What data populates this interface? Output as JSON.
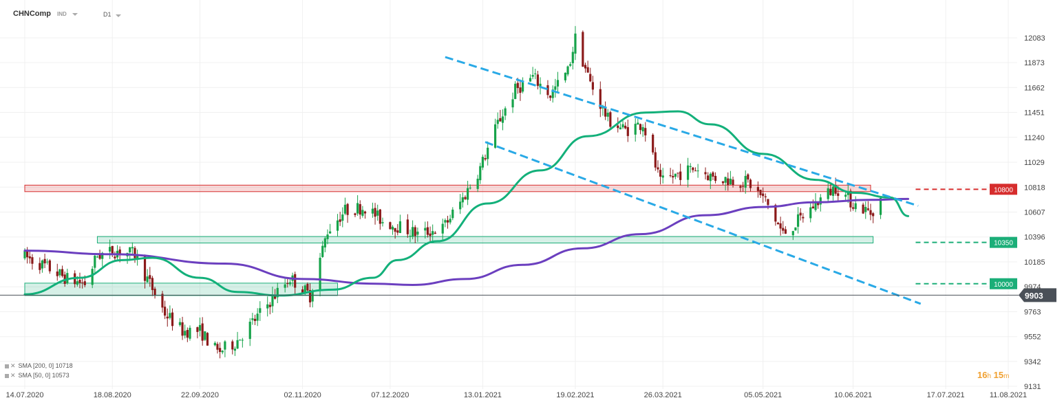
{
  "header": {
    "symbol": "CHNComp",
    "instrument_type": "IND",
    "timeframe": "D1"
  },
  "legend": {
    "sma200": "SMA [200, 0] 10718",
    "sma50": "SMA [50, 0] 10573"
  },
  "timer": {
    "hours": "16",
    "h": "h",
    "minutes": "15",
    "m": "m"
  },
  "colors": {
    "bull": "#16a34a",
    "bear": "#8b1a1a",
    "sma50": "#13b07a",
    "sma200": "#6b3fbf",
    "channel": "#29a9e6",
    "resistance": "#d62d2d",
    "support": "#1bae78",
    "current": "#4a5058"
  },
  "chart_data": {
    "type": "candlestick",
    "ylim": [
      9131,
      12083
    ],
    "y_ticks": [
      "12083",
      "11873",
      "11662",
      "11451",
      "11240",
      "11029",
      "10818",
      "10607",
      "10396",
      "10185",
      "9974",
      "9763",
      "9552",
      "9342",
      "9131"
    ],
    "x_ticks": [
      "14.07.2020",
      "18.08.2020",
      "22.09.2020",
      "02.11.2020",
      "07.12.2020",
      "13.01.2021",
      "19.02.2021",
      "26.03.2021",
      "05.05.2021",
      "10.06.2021",
      "17.07.2021",
      "11.08.2021"
    ],
    "levels": [
      {
        "name": "resistance",
        "value": 10800,
        "label": "10800",
        "style": "dashed",
        "color": "#d62d2d"
      },
      {
        "name": "support-high",
        "value": 10350,
        "label": "10350",
        "style": "dashed",
        "color": "#1bae78"
      },
      {
        "name": "support-low",
        "value": 10000,
        "label": "10000",
        "style": "dashed",
        "color": "#1bae78"
      },
      {
        "name": "current-price",
        "value": 9903,
        "label": "9903",
        "style": "solid",
        "color": "#4a5058"
      }
    ],
    "zones": [
      {
        "name": "resistance-zone",
        "color": "#d62d2d",
        "from": "14.07.2020",
        "to": "17.06.2021",
        "low": 10780,
        "high": 10835
      },
      {
        "name": "support-zone-high",
        "color": "#1bae78",
        "from": "12.08.2020",
        "to": "18.06.2021",
        "low": 10345,
        "high": 10400
      },
      {
        "name": "support-zone-low",
        "color": "#1bae78",
        "from": "14.07.2020",
        "to": "16.11.2020",
        "low": 9900,
        "high": 10005
      }
    ],
    "channel": [
      {
        "name": "channel-upper",
        "from": {
          "date": "29.12.2020",
          "value": 11920
        },
        "to": {
          "date": "06.07.2021",
          "value": 10660
        }
      },
      {
        "name": "channel-lower",
        "from": {
          "date": "14.01.2021",
          "value": 11200
        },
        "to": {
          "date": "07.07.2021",
          "value": 9830
        }
      }
    ],
    "series": [
      {
        "name": "SMA [200, 0]",
        "color": "#6b3fbf",
        "points": [
          [
            "14.07.2020",
            10280
          ],
          [
            "18.08.2020",
            10250
          ],
          [
            "02.10.2020",
            10170
          ],
          [
            "02.11.2020",
            10040
          ],
          [
            "01.12.2020",
            10000
          ],
          [
            "16.12.2020",
            9990
          ],
          [
            "06.01.2021",
            10040
          ],
          [
            "29.01.2021",
            10160
          ],
          [
            "22.02.2021",
            10300
          ],
          [
            "17.03.2021",
            10420
          ],
          [
            "12.04.2021",
            10580
          ],
          [
            "05.05.2021",
            10650
          ],
          [
            "26.05.2021",
            10690
          ],
          [
            "17.06.2021",
            10710
          ],
          [
            "02.07.2021",
            10718
          ]
        ]
      },
      {
        "name": "SMA [50, 0]",
        "color": "#13b07a",
        "points": [
          [
            "14.07.2020",
            9910
          ],
          [
            "05.08.2020",
            10050
          ],
          [
            "22.08.2020",
            10200
          ],
          [
            "03.09.2020",
            10220
          ],
          [
            "22.09.2020",
            10050
          ],
          [
            "07.10.2020",
            9930
          ],
          [
            "24.10.2020",
            9900
          ],
          [
            "14.11.2020",
            9950
          ],
          [
            "30.11.2020",
            10050
          ],
          [
            "10.12.2020",
            10200
          ],
          [
            "26.12.2020",
            10360
          ],
          [
            "15.01.2021",
            10680
          ],
          [
            "05.02.2021",
            10960
          ],
          [
            "24.02.2021",
            11250
          ],
          [
            "19.03.2021",
            11450
          ],
          [
            "01.04.2021",
            11460
          ],
          [
            "14.04.2021",
            11350
          ],
          [
            "05.05.2021",
            11100
          ],
          [
            "26.05.2021",
            10880
          ],
          [
            "11.06.2021",
            10770
          ],
          [
            "25.06.2021",
            10730
          ],
          [
            "02.07.2021",
            10573
          ]
        ]
      }
    ]
  }
}
